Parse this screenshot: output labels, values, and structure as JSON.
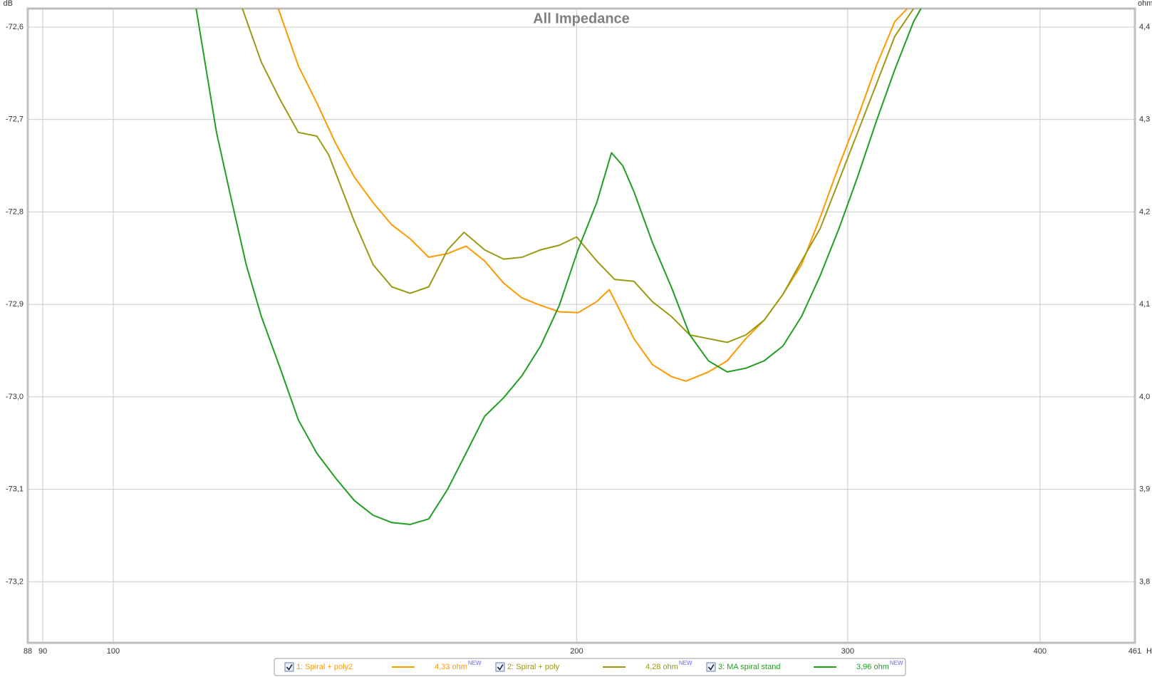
{
  "chart_data": {
    "type": "line",
    "title": "All Impedance",
    "y_label": "dB",
    "y2_label": "ohm",
    "x_unit": "Hz",
    "log_x": true,
    "grid": true,
    "xlim": [
      88,
      461
    ],
    "xticks": [
      88,
      90,
      100,
      200,
      300,
      400,
      461
    ],
    "ylim": [
      -73.266,
      -72.58
    ],
    "yticks": [
      {
        "value": -72.6,
        "label": "-72,6"
      },
      {
        "value": -72.7,
        "label": "-72,7"
      },
      {
        "value": -72.8,
        "label": "-72,8"
      },
      {
        "value": -72.9,
        "label": "-72,9"
      },
      {
        "value": -73.0,
        "label": "-73,0"
      },
      {
        "value": -73.1,
        "label": "-73,1"
      },
      {
        "value": -73.2,
        "label": "-73,2"
      }
    ],
    "y2lim": [
      3.734,
      4.42
    ],
    "y2ticks": [
      {
        "value": 4.4,
        "label": "4,4"
      },
      {
        "value": 4.3,
        "label": "4,3"
      },
      {
        "value": 4.2,
        "label": "4,2"
      },
      {
        "value": 4.1,
        "label": "4,1"
      },
      {
        "value": 4.0,
        "label": "4,0"
      },
      {
        "value": 3.9,
        "label": "3,9"
      },
      {
        "value": 3.8,
        "label": "3,8"
      }
    ],
    "series": [
      {
        "name": "1: Spiral + poly2",
        "color": "#ff9900",
        "axis": "y2",
        "legend_value": "4,33 ohm",
        "badge": "NEW",
        "x": [
          128,
          131.9,
          135.6,
          139.5,
          143.4,
          147.5,
          151.7,
          155.9,
          160.3,
          164.9,
          169.5,
          174.3,
          179.3,
          184.3,
          189.5,
          194.9,
          200.4,
          206.1,
          210,
          214.3,
          217.9,
          224,
          230.4,
          235.5,
          243.6,
          250.5,
          257.6,
          264.8,
          272.3,
          280,
          287.9,
          296.1,
          304.5,
          313.1,
          321.9,
          328
        ],
        "values": [
          4.42,
          4.358,
          4.318,
          4.274,
          4.238,
          4.21,
          4.186,
          4.171,
          4.151,
          4.155,
          4.163,
          4.147,
          4.123,
          4.107,
          4.099,
          4.092,
          4.091,
          4.103,
          4.116,
          4.087,
          4.063,
          4.035,
          4.022,
          4.017,
          4.027,
          4.039,
          4.063,
          4.083,
          4.111,
          4.143,
          4.194,
          4.25,
          4.302,
          4.358,
          4.406,
          4.42
        ]
      },
      {
        "name": "2: Spiral + poly",
        "color": "#9a9a12",
        "axis": "y2",
        "legend_value": "4,28 ohm",
        "badge": "NEW",
        "x": [
          121.3,
          124.8,
          128.3,
          131.9,
          135.6,
          138,
          139.5,
          143.4,
          147.5,
          151.7,
          155.9,
          160.3,
          164.9,
          169,
          174.3,
          179.3,
          184.3,
          189.5,
          194.9,
          200,
          206.1,
          211.7,
          217.9,
          224,
          230.4,
          236.9,
          243.6,
          250.5,
          257.6,
          264.8,
          272.3,
          280,
          287.9,
          296.1,
          304.5,
          313.1,
          321.9,
          331.1
        ],
        "values": [
          4.42,
          4.362,
          4.322,
          4.286,
          4.282,
          4.262,
          4.242,
          4.19,
          4.143,
          4.119,
          4.112,
          4.119,
          4.159,
          4.178,
          4.159,
          4.149,
          4.151,
          4.159,
          4.164,
          4.173,
          4.147,
          4.127,
          4.125,
          4.103,
          4.087,
          4.067,
          4.063,
          4.059,
          4.067,
          4.083,
          4.111,
          4.147,
          4.182,
          4.234,
          4.286,
          4.338,
          4.39,
          4.42
        ]
      },
      {
        "name": "3: MA spiral stand",
        "color": "#1f9e1f",
        "axis": "y2",
        "legend_value": "3,96 ohm",
        "badge": "NEW",
        "x": [
          113.2,
          116.7,
          119.3,
          122,
          124.8,
          128.3,
          131.9,
          135.6,
          139.5,
          143.4,
          147.5,
          151.7,
          155.9,
          160.3,
          164.9,
          169.5,
          174.3,
          179.3,
          184.3,
          189.5,
          194.9,
          200.4,
          206.1,
          210.7,
          214.3,
          217.9,
          224,
          230.4,
          236.9,
          243.6,
          250.5,
          257.6,
          264.8,
          272.3,
          280,
          287.9,
          296.1,
          304.5,
          313.1,
          321.9,
          331.1,
          334.8
        ],
        "values": [
          4.42,
          4.286,
          4.214,
          4.143,
          4.087,
          4.032,
          3.975,
          3.939,
          3.912,
          3.888,
          3.872,
          3.864,
          3.862,
          3.868,
          3.9,
          3.939,
          3.979,
          3.999,
          4.023,
          4.055,
          4.099,
          4.159,
          4.21,
          4.264,
          4.25,
          4.222,
          4.167,
          4.119,
          4.067,
          4.039,
          4.027,
          4.031,
          4.039,
          4.055,
          4.087,
          4.131,
          4.182,
          4.238,
          4.298,
          4.354,
          4.406,
          4.42
        ]
      }
    ]
  }
}
